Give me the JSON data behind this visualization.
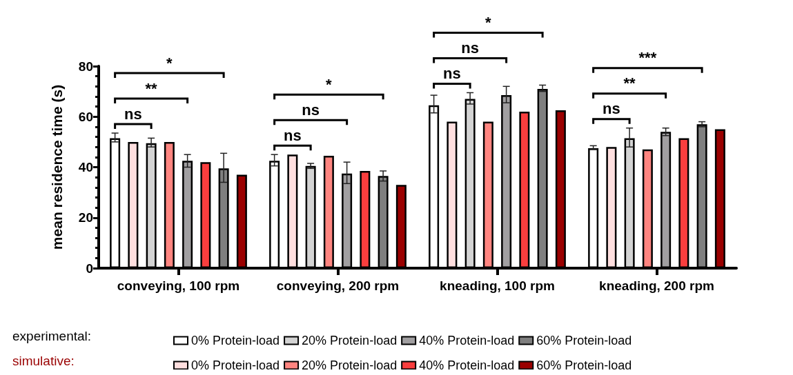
{
  "chart_data": {
    "type": "bar",
    "ylabel": "mean residence time (s)",
    "categories": [
      "conveying, 100 rpm",
      "conveying, 200 rpm",
      "kneading, 100 rpm",
      "kneading, 200 rpm"
    ],
    "ylim": [
      0,
      80
    ],
    "yticks": [
      0,
      20,
      40,
      60,
      80
    ],
    "grid": false,
    "legend": "bottom",
    "series": [
      {
        "name": "0% Protein-load",
        "color": "#ffffff",
        "values": [
          51.5,
          42.5,
          64.5,
          47.5
        ],
        "errors": [
          [
            50,
            53.5
          ],
          [
            40.5,
            45
          ],
          [
            61.5,
            68.5
          ],
          [
            47,
            48.5
          ]
        ]
      },
      {
        "name": "0% Protein-load",
        "color": "#ffdfdf",
        "values": [
          50,
          45,
          58,
          48
        ]
      },
      {
        "name": "20% Protein-load",
        "color": "#d3d3d3",
        "values": [
          49.5,
          40.5,
          67,
          51.5
        ],
        "errors": [
          [
            48,
            51.5
          ],
          [
            39.5,
            41.5
          ],
          [
            65,
            69.5
          ],
          [
            48,
            55.5
          ]
        ]
      },
      {
        "name": "20% Protein-load",
        "color": "#ff8580",
        "values": [
          50,
          44.5,
          58,
          47
        ]
      },
      {
        "name": "40% Protein-load",
        "color": "#a19fa1",
        "values": [
          42.5,
          37.5,
          68.5,
          54
        ],
        "errors": [
          [
            40,
            45
          ],
          [
            33.5,
            42
          ],
          [
            65.5,
            72
          ],
          [
            52.5,
            55.5
          ]
        ]
      },
      {
        "name": "40% Protein-load",
        "color": "#fa3e3e",
        "values": [
          42,
          38.5,
          62,
          51.5
        ]
      },
      {
        "name": "60% Protein-load",
        "color": "#7f7f7f",
        "values": [
          39.5,
          36.5,
          71,
          57
        ],
        "errors": [
          [
            34,
            45.5
          ],
          [
            34.5,
            38.5
          ],
          [
            70,
            72.5
          ],
          [
            56,
            58
          ]
        ]
      },
      {
        "name": "60% Protein-load",
        "color": "#9a0000",
        "values": [
          37,
          33,
          62.5,
          55
        ]
      }
    ],
    "annotations": [
      "ns",
      "**",
      "*",
      "ns",
      "ns",
      "*",
      "ns",
      "ns",
      "*",
      "ns",
      "**",
      "***",
      "experimental:",
      "simulative:"
    ]
  }
}
